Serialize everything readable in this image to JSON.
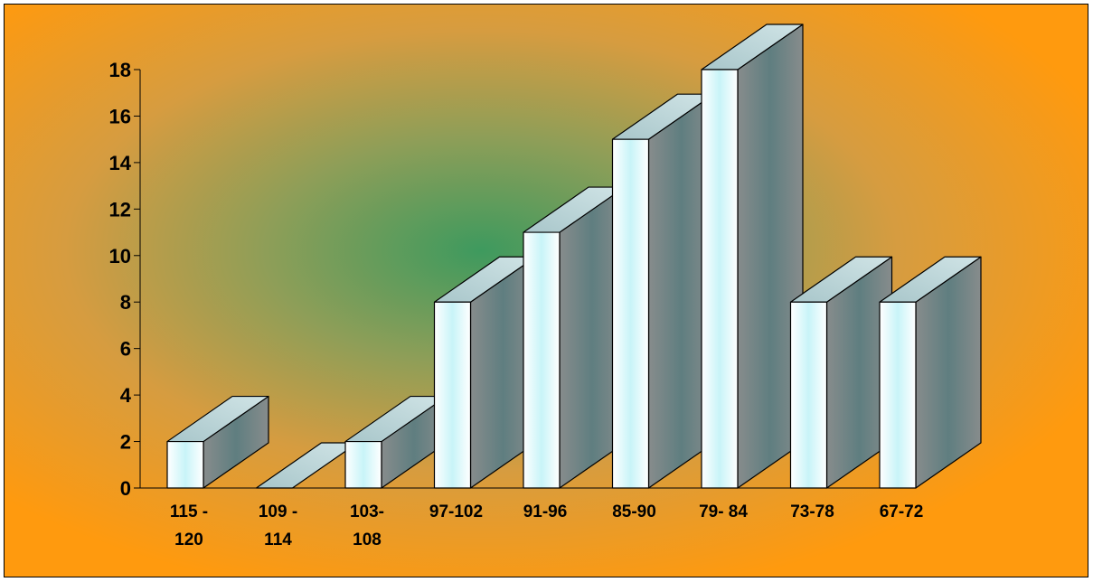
{
  "chart_data": {
    "type": "bar",
    "style": "3d-columns",
    "categories": [
      "115 - 120",
      "109 - 114",
      "103-108",
      "97-102",
      "91-96",
      "85-90",
      "79- 84",
      "73-78",
      "67-72"
    ],
    "category_lines": [
      [
        "115 -",
        "120"
      ],
      [
        "109 -",
        "114"
      ],
      [
        "103-",
        "108"
      ],
      [
        "97-102"
      ],
      [
        "91-96"
      ],
      [
        "85-90"
      ],
      [
        "79- 84"
      ],
      [
        "73-78"
      ],
      [
        "67-72"
      ]
    ],
    "values": [
      2,
      0,
      2,
      8,
      11,
      15,
      18,
      8,
      8
    ],
    "ylim": [
      0,
      18
    ],
    "yticks": [
      0,
      2,
      4,
      6,
      8,
      10,
      12,
      14,
      16,
      18
    ],
    "title": "",
    "xlabel": "",
    "ylabel": "",
    "grid": false,
    "legend": "none",
    "colors": {
      "background_outer": "#FF9A0E",
      "background_center": "#3E9A5E",
      "bar_front": "#FFFFFF",
      "bar_front_glow": "#C8F4F8",
      "bar_side": "#6E8484",
      "bar_top": "#B8D4D8"
    }
  }
}
